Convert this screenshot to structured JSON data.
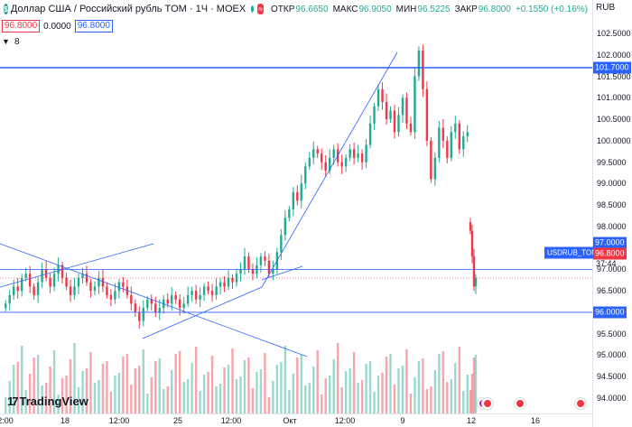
{
  "header": {
    "symbol_title": "Доллар США / Российский рубль TOM · 1Ч · MOEX",
    "open_label": "ОТКР",
    "open_value": "96.6650",
    "high_label": "МАКС",
    "high_value": "96.9050",
    "low_label": "МИН",
    "low_value": "96.5225",
    "close_label": "ЗАКР",
    "close_value": "96.8000",
    "change_value": "+0.1550 (+0.16%)",
    "wave_icon_text": "≈",
    "flag_letter": "$"
  },
  "trade": {
    "sell_price": "96.8000",
    "spread": "0.0000",
    "buy_price": "96.8000"
  },
  "indicators": {
    "count": "8"
  },
  "currency": "RUB",
  "y_axis": {
    "ticks": [
      "102.5000",
      "102.0000",
      "101.5000",
      "101.0000",
      "100.5000",
      "100.0000",
      "99.5000",
      "99.0000",
      "98.5000",
      "98.0000",
      "97.5000",
      "97.0000",
      "96.5000",
      "96.0000",
      "95.5000",
      "95.0000",
      "94.5000",
      "94.0000"
    ],
    "line_tag_top": "101.7000",
    "line_tag_mid": "97.0000",
    "line_tag_low": "96.0000",
    "current_price": "96.8000",
    "countdown": "37:44",
    "symbol_tag": "USDRUB_TOM"
  },
  "x_axis": {
    "labels": [
      "2:00",
      "18",
      "12:00",
      "25",
      "12:00",
      "Окт",
      "12:00",
      "9",
      "12",
      "16"
    ]
  },
  "branding": {
    "logo_text": "TradingView",
    "logo_mark": "17"
  },
  "colors": {
    "up": "#22ab94",
    "down": "#f23645",
    "line": "#2962ff"
  },
  "chart_data": {
    "type": "candlestick",
    "title": "Доллар США / Российский рубль TOM · 1Ч · MOEX",
    "ylim": [
      93.8,
      102.8
    ],
    "horizontal_lines": [
      101.7,
      97.0,
      96.0
    ],
    "current_price": 96.8,
    "close_series": [
      96.2,
      96.4,
      96.6,
      96.5,
      96.8,
      96.9,
      96.6,
      96.4,
      96.7,
      97.0,
      96.8,
      96.6,
      96.9,
      97.1,
      96.8,
      96.6,
      96.4,
      96.6,
      96.8,
      96.9,
      96.7,
      96.5,
      96.6,
      96.8,
      96.6,
      96.4,
      96.3,
      96.5,
      96.7,
      96.6,
      96.4,
      96.2,
      96.0,
      95.8,
      96.1,
      96.3,
      96.2,
      96.0,
      96.1,
      96.3,
      96.2,
      96.4,
      96.3,
      96.1,
      96.2,
      96.4,
      96.5,
      96.3,
      96.4,
      96.6,
      96.5,
      96.4,
      96.6,
      96.7,
      96.6,
      96.8,
      96.7,
      96.9,
      97.0,
      97.3,
      97.0,
      96.9,
      97.1,
      97.3,
      97.2,
      96.9,
      97.0,
      97.4,
      97.8,
      98.2,
      98.4,
      98.8,
      98.6,
      99.0,
      99.4,
      99.6,
      99.8,
      99.7,
      99.5,
      99.3,
      99.6,
      99.8,
      99.5,
      99.4,
      99.6,
      99.8,
      99.6,
      99.7,
      99.5,
      99.9,
      100.4,
      100.8,
      101.2,
      100.9,
      100.5,
      100.7,
      100.2,
      100.6,
      101.0,
      100.4,
      100.2,
      101.5,
      102.1,
      101.2,
      100.0,
      99.1,
      99.6,
      100.3,
      100.0,
      99.6,
      100.2,
      100.4,
      99.8,
      100.1,
      100.2
    ],
    "gap_after_index": 114,
    "tail_series": [
      97.9,
      97.3,
      96.6,
      96.8
    ]
  }
}
